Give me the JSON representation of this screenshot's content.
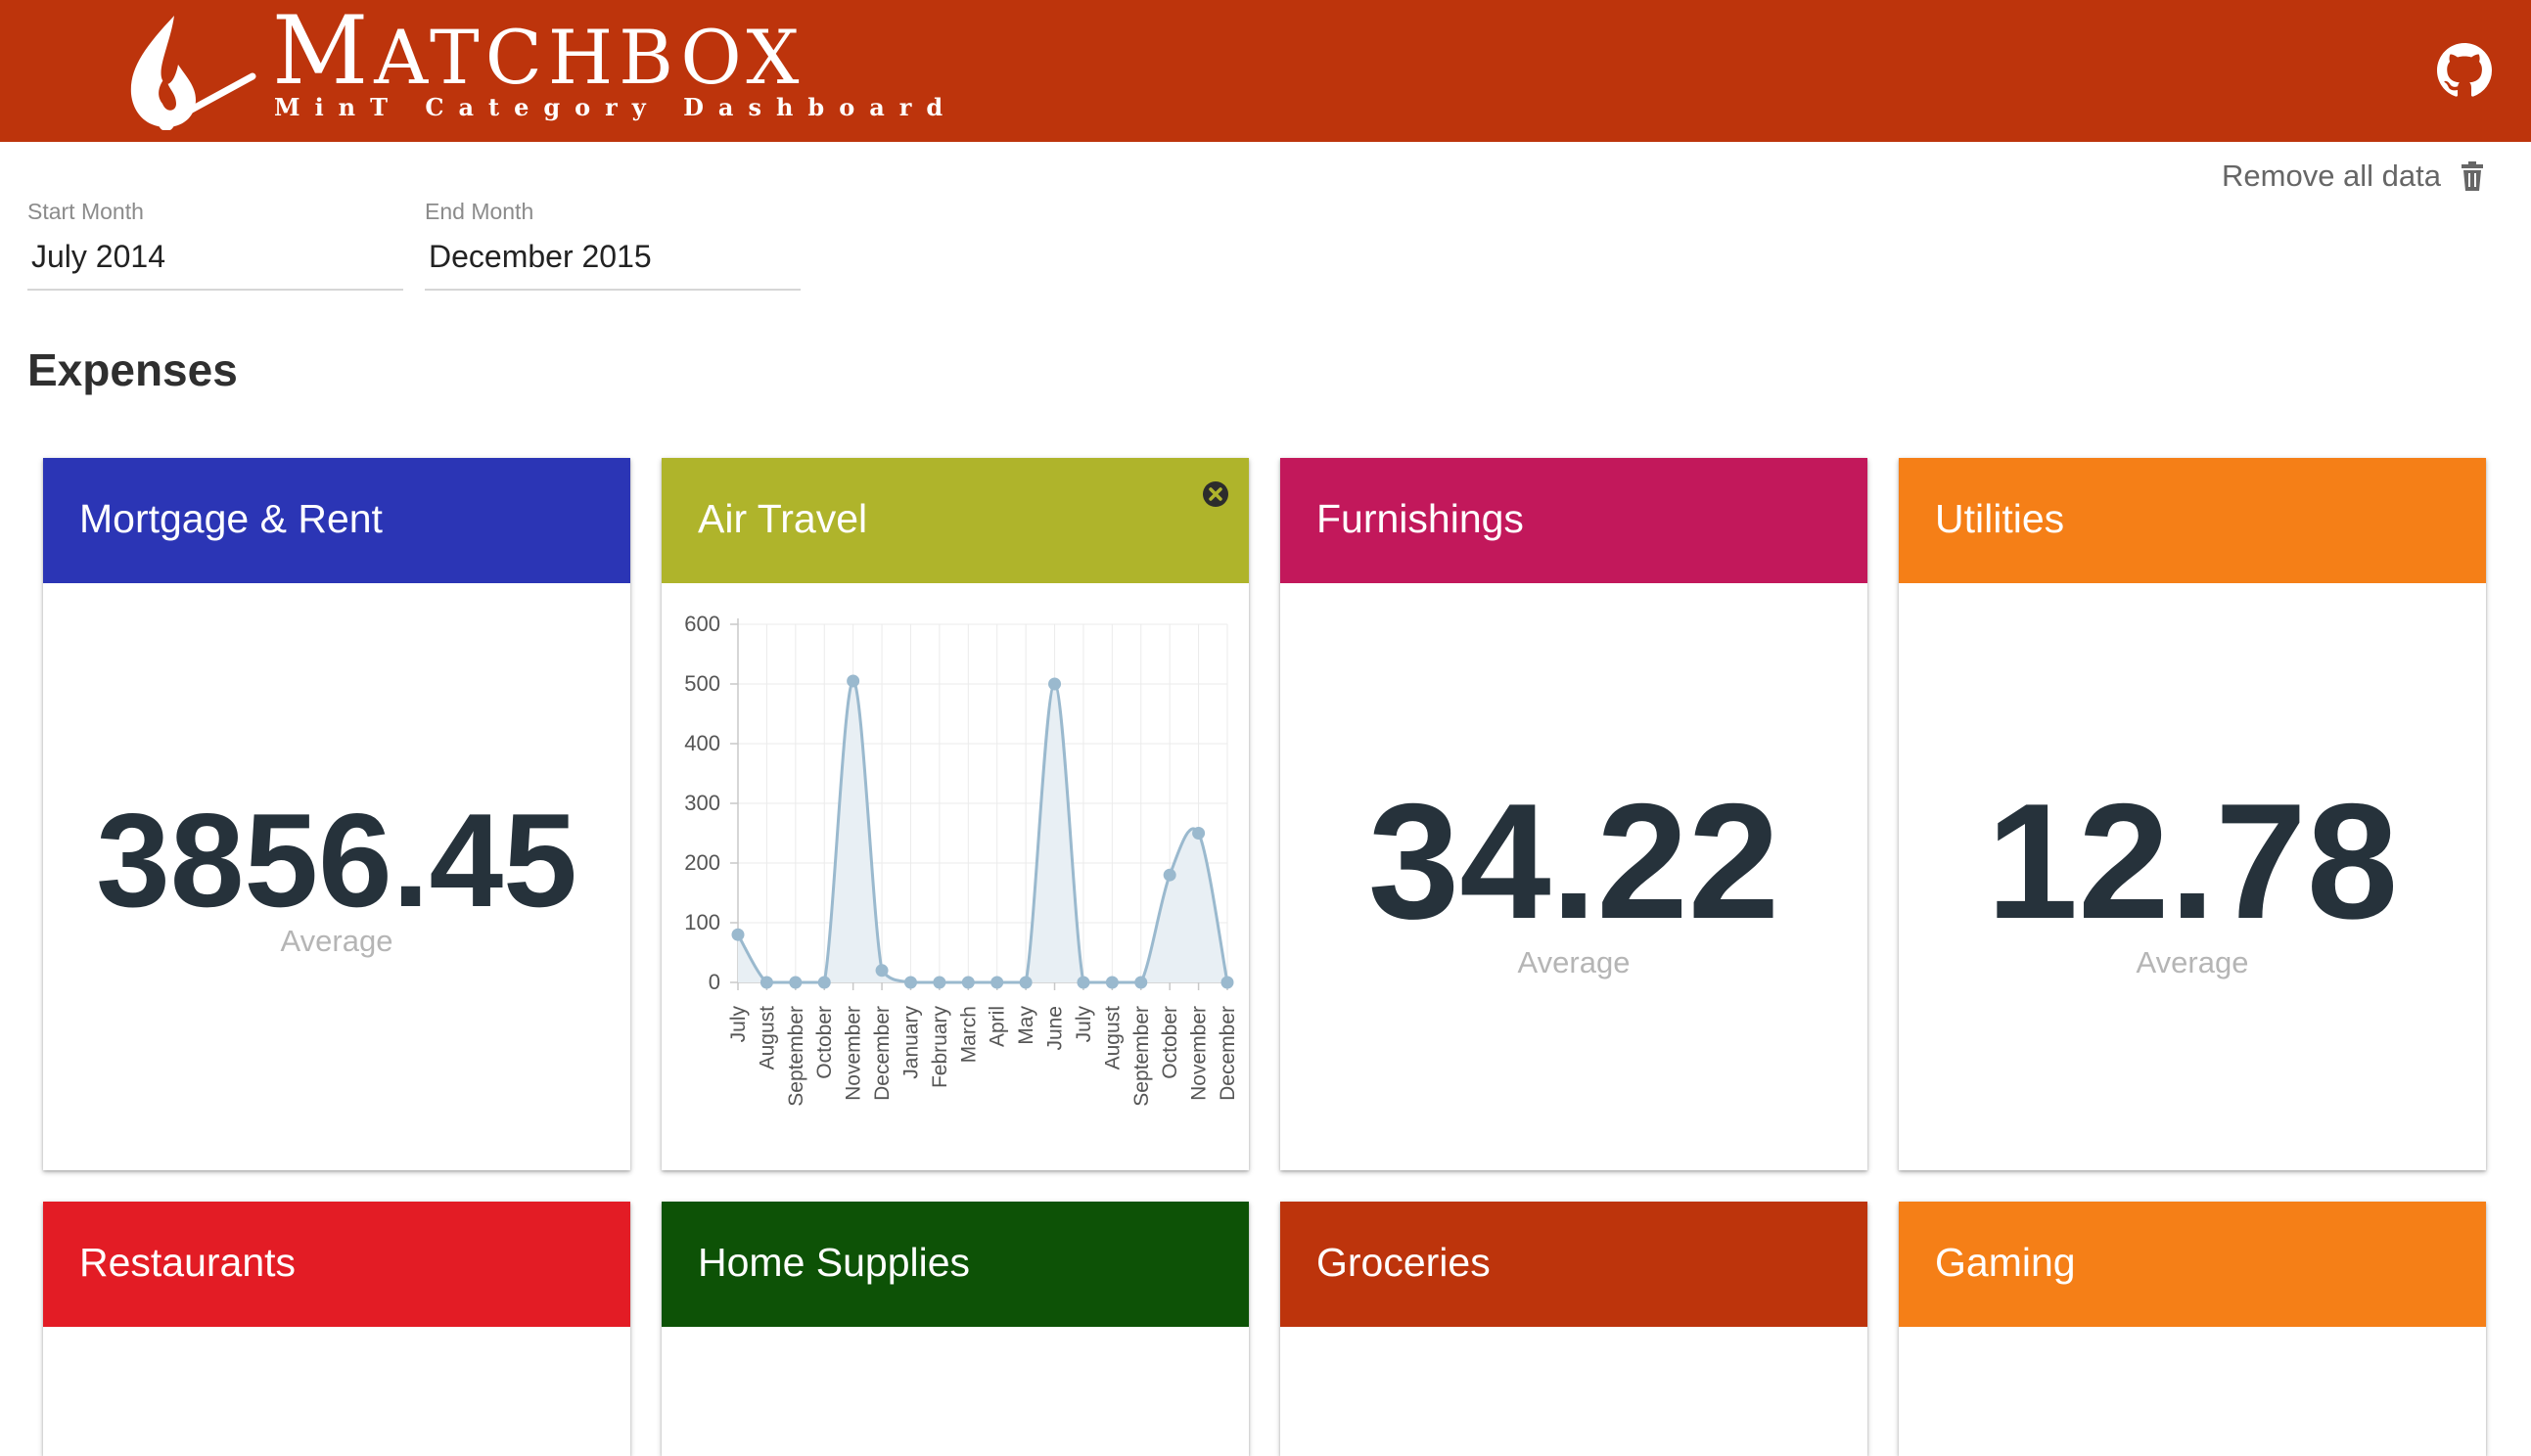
{
  "header": {
    "title_first": "M",
    "title_rest": "ATCHBOX",
    "subtitle": "MinT Category Dashboard",
    "brand_color": "#bd340c"
  },
  "toolbar": {
    "remove_all_label": "Remove all data"
  },
  "filters": {
    "start_label": "Start Month",
    "start_value": "July 2014",
    "end_label": "End Month",
    "end_value": "December 2015"
  },
  "section": {
    "title": "Expenses"
  },
  "cards": [
    {
      "title": "Mortgage & Rent",
      "color": "#2b35b5",
      "value": "3856.45",
      "value_label": "Average"
    },
    {
      "title": "Air Travel",
      "color": "#afb42b"
    },
    {
      "title": "Furnishings",
      "color": "#c2185b",
      "value": "34.22",
      "value_label": "Average"
    },
    {
      "title": "Utilities",
      "color": "#f57f17",
      "value": "12.78",
      "value_label": "Average"
    },
    {
      "title": "Restaurants",
      "color": "#e31c25"
    },
    {
      "title": "Home Supplies",
      "color": "#0d5206"
    },
    {
      "title": "Groceries",
      "color": "#bd340c"
    },
    {
      "title": "Gaming",
      "color": "#f57f17"
    }
  ],
  "chart_data": {
    "type": "area",
    "x": [
      "July",
      "August",
      "September",
      "October",
      "November",
      "December",
      "January",
      "February",
      "March",
      "April",
      "May",
      "June",
      "July",
      "August",
      "September",
      "October",
      "November",
      "December"
    ],
    "values": [
      80,
      0,
      0,
      0,
      505,
      20,
      0,
      0,
      0,
      0,
      0,
      500,
      0,
      0,
      0,
      180,
      250,
      0
    ],
    "y_ticks": [
      0,
      100,
      200,
      300,
      400,
      500,
      600
    ],
    "ylim": [
      0,
      600
    ],
    "grid": true,
    "line_color": "#9ab9ce",
    "fill_color": "#e8eff4"
  }
}
